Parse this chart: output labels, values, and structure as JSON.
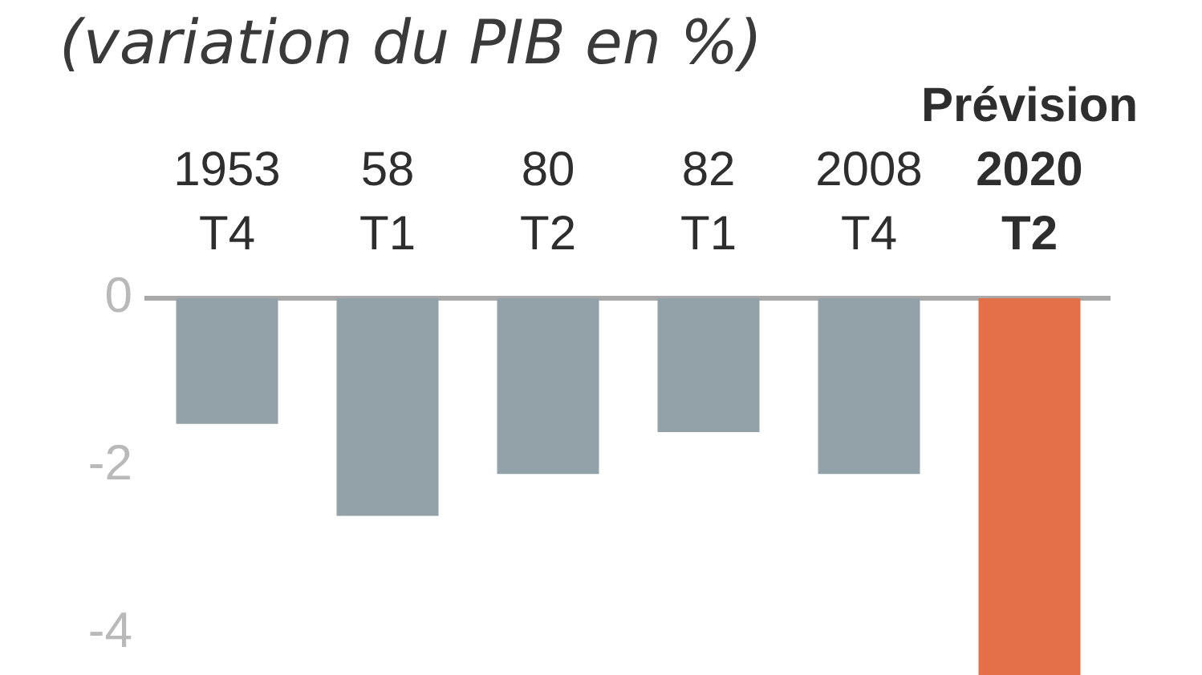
{
  "chart_data": {
    "type": "bar",
    "title": "(variation du PIB en %)",
    "categories": [
      "1953\nT4",
      "58\nT1",
      "80\nT2",
      "82\nT1",
      "2008\nT4",
      "Prévision\n2020\nT2"
    ],
    "values": [
      -1.5,
      -2.6,
      -2.1,
      -1.6,
      -2.1,
      -4.5
    ],
    "colors": [
      "#93a2a8",
      "#93a2a8",
      "#93a2a8",
      "#93a2a8",
      "#93a2a8",
      "#e4704a"
    ],
    "ylim": [
      -4.5,
      0
    ],
    "yticks": [
      -4,
      -2,
      0
    ]
  }
}
